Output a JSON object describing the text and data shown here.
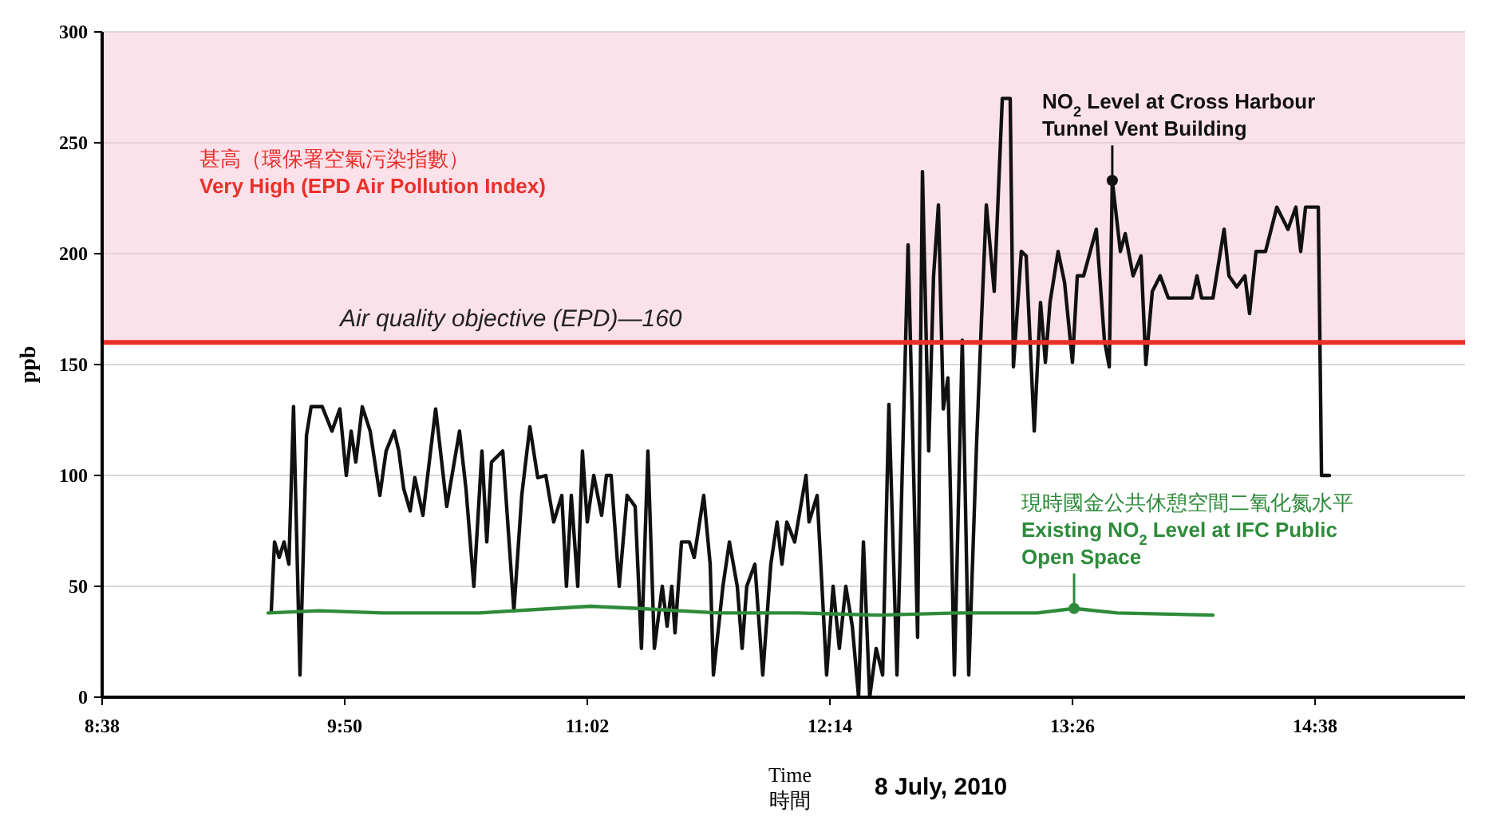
{
  "chart_data": {
    "type": "line",
    "xlabel": "Time\n時間",
    "ylabel": "ppb",
    "xlim": [
      8.6333,
      15.375
    ],
    "ylim": [
      0,
      300
    ],
    "xticks": [
      {
        "value": 8.6333,
        "label": "8:38"
      },
      {
        "value": 9.8333,
        "label": "9:50"
      },
      {
        "value": 11.0333,
        "label": "11:02"
      },
      {
        "value": 12.2333,
        "label": "12:14"
      },
      {
        "value": 13.4333,
        "label": "13:26"
      },
      {
        "value": 14.6333,
        "label": "14:38"
      }
    ],
    "yticks": [
      0,
      50,
      100,
      150,
      200,
      250,
      300
    ],
    "grid": "y",
    "series": [
      {
        "color": "#111111",
        "x": [
          9.47,
          9.486,
          9.509,
          9.533,
          9.557,
          9.58,
          9.612,
          9.644,
          9.667,
          9.722,
          9.77,
          9.809,
          9.841,
          9.865,
          9.888,
          9.92,
          9.959,
          10.007,
          10.038,
          10.078,
          10.101,
          10.125,
          10.157,
          10.18,
          10.22,
          10.283,
          10.338,
          10.401,
          10.433,
          10.472,
          10.512,
          10.536,
          10.559,
          10.615,
          10.67,
          10.709,
          10.749,
          10.788,
          10.828,
          10.867,
          10.907,
          10.93,
          10.954,
          10.986,
          11.009,
          11.033,
          11.065,
          11.104,
          11.128,
          11.151,
          11.191,
          11.23,
          11.27,
          11.301,
          11.333,
          11.365,
          11.404,
          11.428,
          11.451,
          11.467,
          11.499,
          11.538,
          11.562,
          11.609,
          11.641,
          11.657,
          11.704,
          11.736,
          11.775,
          11.799,
          11.822,
          11.862,
          11.901,
          11.941,
          11.972,
          11.996,
          12.02,
          12.059,
          12.115,
          12.13,
          12.17,
          12.194,
          12.217,
          12.249,
          12.28,
          12.312,
          12.344,
          12.375,
          12.399,
          12.43,
          12.462,
          12.494,
          12.525,
          12.565,
          12.62,
          12.667,
          12.691,
          12.722,
          12.746,
          12.77,
          12.794,
          12.817,
          12.849,
          12.888,
          12.92,
          12.959,
          12.983,
          13.007,
          13.046,
          13.086,
          13.125,
          13.141,
          13.18,
          13.204,
          13.244,
          13.275,
          13.299,
          13.322,
          13.362,
          13.394,
          13.433,
          13.457,
          13.488,
          13.551,
          13.591,
          13.615,
          13.63,
          13.67,
          13.694,
          13.733,
          13.772,
          13.796,
          13.828,
          13.867,
          13.907,
          13.97,
          14.025,
          14.049,
          14.072,
          14.128,
          14.183,
          14.207,
          14.246,
          14.286,
          14.309,
          14.341,
          14.388,
          14.444,
          14.499,
          14.538,
          14.562,
          14.586,
          14.625,
          14.649,
          14.665,
          14.704
        ],
        "values": [
          39,
          70,
          63,
          70,
          60,
          131,
          10,
          118,
          131,
          131,
          120,
          130,
          100,
          120,
          106,
          131,
          120,
          91,
          111,
          120,
          111,
          94,
          84,
          99,
          82,
          130,
          86,
          120,
          94,
          50,
          111,
          70,
          106,
          111,
          39,
          91,
          122,
          99,
          100,
          79,
          91,
          50,
          91,
          50,
          111,
          79,
          100,
          82,
          100,
          100,
          50,
          91,
          86,
          22,
          111,
          22,
          50,
          32,
          50,
          29,
          70,
          70,
          63,
          91,
          60,
          10,
          50,
          70,
          50,
          22,
          50,
          60,
          10,
          60,
          79,
          60,
          79,
          70,
          100,
          79,
          91,
          50,
          10,
          50,
          22,
          50,
          32,
          0,
          70,
          0,
          22,
          10,
          132,
          10,
          204,
          27,
          237,
          111,
          190,
          222,
          130,
          144,
          10,
          161,
          10,
          115,
          170,
          222,
          183,
          270,
          270,
          149,
          201,
          199,
          120,
          178,
          151,
          178,
          201,
          187,
          151,
          190,
          190,
          211,
          161,
          149,
          233,
          201,
          209,
          190,
          199,
          150,
          183,
          190,
          180,
          180,
          180,
          190,
          180,
          180,
          211,
          190,
          185,
          190,
          173,
          201,
          201,
          221,
          211,
          221,
          201,
          221,
          221,
          221,
          100,
          100
        ]
      },
      {
        "color": "#2e8b3a",
        "x": [
          9.454,
          9.707,
          10.023,
          10.496,
          11.049,
          11.286,
          11.68,
          12.075,
          12.47,
          12.865,
          13.259,
          13.441,
          13.654,
          14.128
        ],
        "values": [
          38,
          39,
          38,
          38,
          41,
          40,
          38,
          38,
          37,
          38,
          38,
          40,
          38,
          37
        ]
      }
    ],
    "ref_lines": [
      {
        "axis": "y",
        "value": 160,
        "label": "Air quality objective (EPD)—160",
        "color": "#e8302a"
      }
    ],
    "bands": [
      {
        "axis": "y",
        "from": 160,
        "to": 300,
        "label": "甚高（環保署空氣污染指數）\nVery High (EPD Air Pollution Index)",
        "color": "#f7c9d9"
      }
    ],
    "annotations": [
      {
        "text": "NO$_{2}$ Level at Cross Harbour\nTunnel Vent Building",
        "x": 13.63,
        "y": 233
      },
      {
        "text": "現時國金公共休憩空間二氧化氮水平\nExisting NO$_{2}$ Level at IFC Public\nOpen Space",
        "x": 13.441,
        "y": 40
      },
      "8 July, 2010"
    ]
  }
}
